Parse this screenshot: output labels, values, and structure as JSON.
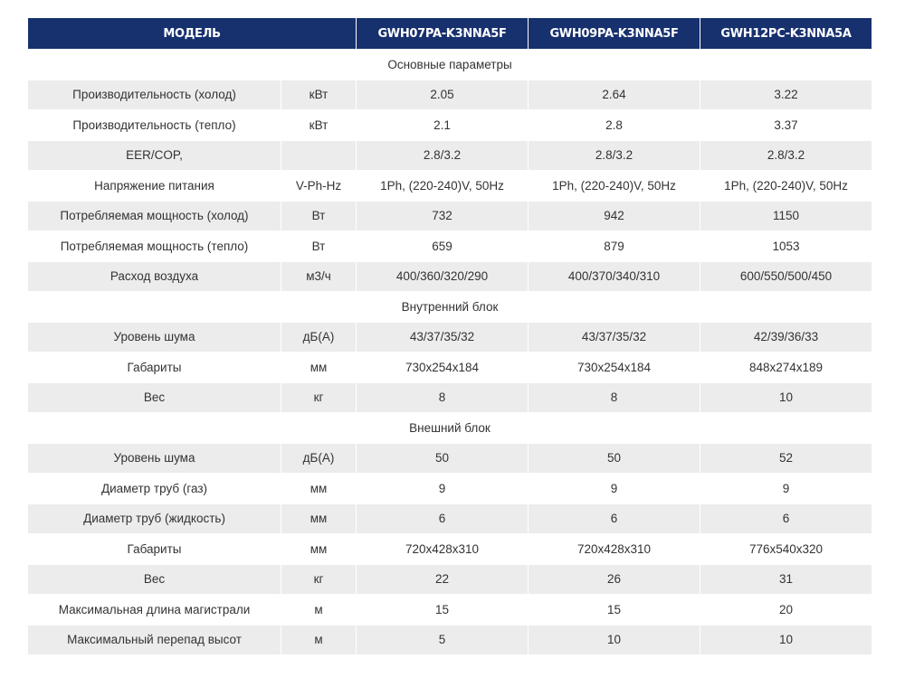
{
  "table": {
    "header": {
      "model": "МОДЕЛЬ",
      "columns": [
        "GWH07PA-K3NNA5F",
        "GWH09PA-K3NNA5F",
        "GWH12PC-K3NNA5A"
      ]
    },
    "rows": [
      {
        "section": "Основные параметры"
      },
      [
        "Производительность (холод)",
        "кВт",
        "2.05",
        "2.64",
        "3.22"
      ],
      [
        "Производительность (тепло)",
        "кВт",
        "2.1",
        "2.8",
        "3.37"
      ],
      [
        "EER/COP,",
        "",
        "2.8/3.2",
        "2.8/3.2",
        "2.8/3.2"
      ],
      [
        "Напряжение питания",
        "V-Ph-Hz",
        "1Ph, (220-240)V, 50Hz",
        "1Ph, (220-240)V, 50Hz",
        "1Ph, (220-240)V, 50Hz"
      ],
      [
        "Потребляемая мощность (холод)",
        "Вт",
        "732",
        "942",
        "1150"
      ],
      [
        "Потребляемая мощность (тепло)",
        "Вт",
        "659",
        "879",
        "1053"
      ],
      [
        "Расход воздуха",
        "м3/ч",
        "400/360/320/290",
        "400/370/340/310",
        "600/550/500/450"
      ],
      {
        "section": "Внутренний блок"
      },
      [
        "Уровень шума",
        "дБ(А)",
        "43/37/35/32",
        "43/37/35/32",
        "42/39/36/33"
      ],
      [
        "Габариты",
        "мм",
        "730x254x184",
        "730x254x184",
        "848x274x189"
      ],
      [
        "Вес",
        "кг",
        "8",
        "8",
        "10"
      ],
      {
        "section": "Внешний блок"
      },
      [
        "Уровень шума",
        "дБ(А)",
        "50",
        "50",
        "52"
      ],
      [
        "Диаметр труб (газ)",
        "мм",
        "9",
        "9",
        "9"
      ],
      [
        "Диаметр труб (жидкость)",
        "мм",
        "6",
        "6",
        "6"
      ],
      [
        "Габариты",
        "мм",
        "720x428x310",
        "720x428x310",
        "776x540x320"
      ],
      [
        "Вес",
        "кг",
        "22",
        "26",
        "31"
      ],
      [
        "Максимальная длина магистрали",
        "м",
        "15",
        "15",
        "20"
      ],
      [
        "Максимальный перепад высот",
        "м",
        "5",
        "10",
        "10"
      ]
    ]
  }
}
